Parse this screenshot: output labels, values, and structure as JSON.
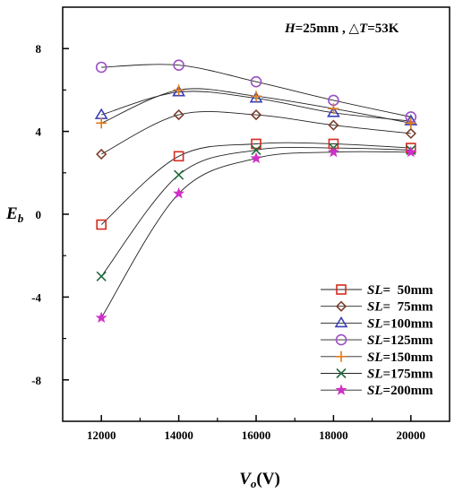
{
  "chart_data": {
    "type": "line",
    "annotation_parts": [
      "H",
      "=25mm , ",
      "△",
      "T",
      "=53K"
    ],
    "xlabel_parts": [
      "V",
      "o",
      "(V)"
    ],
    "ylabel_parts": [
      "E",
      "b"
    ],
    "xlim": [
      11000,
      21000
    ],
    "ylim": [
      -10,
      10
    ],
    "x_ticks": [
      12000,
      14000,
      16000,
      18000,
      20000
    ],
    "x_tick_labels": [
      "12000",
      "14000",
      "16000",
      "18000",
      "20000"
    ],
    "y_ticks": [
      -8,
      -4,
      0,
      4,
      8
    ],
    "y_tick_labels": [
      "-8",
      "-4",
      "0",
      "4",
      "8"
    ],
    "grid": false,
    "legend_position": "bottom-right",
    "x": [
      12000,
      14000,
      16000,
      18000,
      20000
    ],
    "series": [
      {
        "name": "SL=  50mm",
        "legend_prefix": "SL",
        "legend_suffix": "=  50mm",
        "marker": "square",
        "color": "#d62b1f",
        "values": [
          -0.5,
          2.8,
          3.4,
          3.4,
          3.2
        ]
      },
      {
        "name": "SL=  75mm",
        "legend_prefix": "SL",
        "legend_suffix": "=  75mm",
        "marker": "diamond",
        "color": "#7a3f2c",
        "values": [
          2.9,
          4.8,
          4.8,
          4.3,
          3.9
        ]
      },
      {
        "name": "SL=100mm",
        "legend_prefix": "SL",
        "legend_suffix": "=100mm",
        "marker": "triangle",
        "color": "#3b3fb5",
        "values": [
          4.8,
          5.9,
          5.6,
          4.9,
          4.5
        ]
      },
      {
        "name": "SL=125mm",
        "legend_prefix": "SL",
        "legend_suffix": "=125mm",
        "marker": "circle",
        "color": "#9b4fc4",
        "values": [
          7.1,
          7.2,
          6.4,
          5.5,
          4.7
        ]
      },
      {
        "name": "SL=150mm",
        "legend_prefix": "SL",
        "legend_suffix": "=150mm",
        "marker": "plus",
        "color": "#e07a17",
        "values": [
          4.4,
          6.0,
          5.7,
          5.1,
          4.4
        ]
      },
      {
        "name": "SL=175mm",
        "legend_prefix": "SL",
        "legend_suffix": "=175mm",
        "marker": "x",
        "color": "#1e6b3a",
        "values": [
          -3.0,
          1.9,
          3.1,
          3.2,
          3.1
        ]
      },
      {
        "name": "SL=200mm",
        "legend_prefix": "SL",
        "legend_suffix": "=200mm",
        "marker": "star",
        "color": "#d12fc8",
        "values": [
          -5.0,
          1.0,
          2.7,
          3.0,
          3.0
        ]
      }
    ]
  }
}
